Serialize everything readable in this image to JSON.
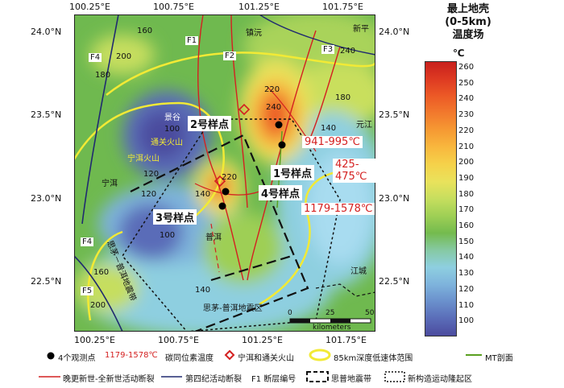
{
  "axes": {
    "top_lon": [
      "100.25°E",
      "100.75°E",
      "101.25°E",
      "101.75°E"
    ],
    "bottom_lon": [
      "100.25°E",
      "100.75°E",
      "101.25°E",
      "101.75°E"
    ],
    "left_lat": [
      "24.0°N",
      "23.5°N",
      "23.0°N",
      "22.5°N"
    ],
    "right_lat": [
      "24.0°N",
      "23.5°N",
      "23.0°N",
      "22.5°N"
    ]
  },
  "colorbar": {
    "title_lines": [
      "最上地壳",
      "(0-5km)",
      "温度场"
    ],
    "unit": "℃",
    "ticks": [
      "260",
      "250",
      "240",
      "230",
      "220",
      "210",
      "200",
      "190",
      "180",
      "170",
      "160",
      "150",
      "140",
      "130",
      "120",
      "110",
      "100"
    ],
    "colors": [
      "#c8201d",
      "#de3a22",
      "#ec5a26",
      "#f27a2d",
      "#f69a33",
      "#f8b83e",
      "#f5d24a",
      "#e9e25c",
      "#c6de5e",
      "#9ecf55",
      "#74bb4e",
      "#86c9a4",
      "#8ecfe0",
      "#7eb3dc",
      "#6a90cc",
      "#5a6cb8",
      "#4b4b9e"
    ]
  },
  "map_labels": {
    "faults": [
      "F1",
      "F2",
      "F3",
      "F4",
      "F4",
      "F5"
    ],
    "places": [
      "镇沅",
      "新平",
      "元江",
      "景谷",
      "宁洱",
      "普洱",
      "江城"
    ],
    "volcano1": "通关火山",
    "volcano2": "宁洱火山",
    "zone": "思茅-普洱地震区",
    "zone2": "思茅－普洱地震带",
    "isotherms": [
      "160",
      "200",
      "180",
      "220",
      "240",
      "180",
      "140",
      "120",
      "100",
      "120",
      "220",
      "140",
      "120",
      "160",
      "100",
      "140",
      "200",
      "240"
    ],
    "samples": [
      "1号样点",
      "2号样点",
      "3号样点",
      "4号样点"
    ],
    "temps": [
      "941-995℃",
      "425-475℃",
      "1179-1578℃"
    ],
    "scale": {
      "ticks": [
        "0",
        "25",
        "50"
      ],
      "unit": "kilometers"
    }
  },
  "legend": {
    "row1": [
      "4个观测点",
      "1179-1578℃",
      "碳同位素温度",
      "宁洱和通关火山",
      "85km深度低速体范围",
      "MT剖面"
    ],
    "row2": [
      "晚更新世-全新世活动断裂",
      "第四纪活动断裂",
      "F1 断层编号",
      "思普地震带",
      "新构造运动隆起区"
    ]
  }
}
